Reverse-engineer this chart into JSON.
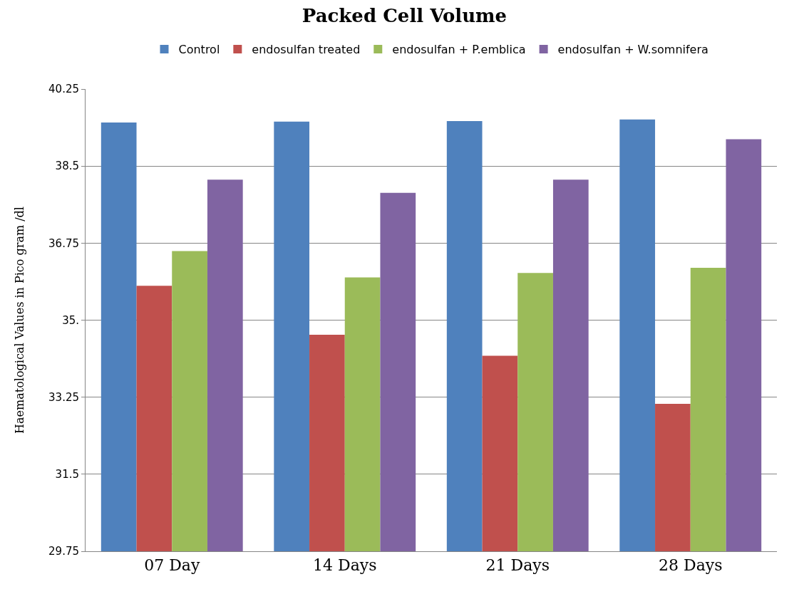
{
  "chart_data": {
    "type": "bar",
    "title": "Packed Cell Volume",
    "ylabel": "Haematological Values in Pico gram /dl",
    "categories": [
      "07 Day",
      "14 Days",
      "21 Days",
      "28 Days"
    ],
    "series": [
      {
        "name": "Control",
        "color": "#4f81bd",
        "values": [
          39.49,
          39.51,
          39.52,
          39.56
        ]
      },
      {
        "name": "endosulfan treated",
        "color": "#c0504d",
        "values": [
          35.78,
          34.67,
          34.19,
          33.1
        ]
      },
      {
        "name": "endosulfan + P.emblica",
        "color": "#9bbb59",
        "values": [
          36.57,
          35.97,
          36.07,
          36.19
        ]
      },
      {
        "name": "endosulfan + W.somnifera",
        "color": "#8064a2",
        "values": [
          38.19,
          37.89,
          38.19,
          39.11
        ]
      }
    ],
    "ylim": [
      29.75,
      40.25
    ],
    "yticks": [
      29.75,
      31.5,
      33.25,
      {
        "value": 35,
        "label": "35."
      },
      36.75,
      38.5,
      40.25
    ],
    "grid": "y",
    "legend": "top"
  }
}
